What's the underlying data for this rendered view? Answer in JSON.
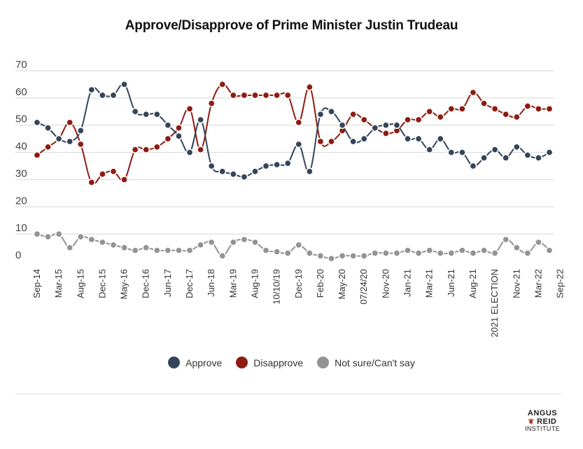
{
  "chart_data": {
    "type": "line",
    "title": "Approve/Disapprove of Prime Minister Justin Trudeau",
    "xlabel": "",
    "ylabel": "",
    "ylim": [
      0,
      70
    ],
    "yticks": [
      0,
      10,
      20,
      30,
      40,
      50,
      60,
      70
    ],
    "grid": true,
    "legend_position": "bottom",
    "x_tick_labels": [
      {
        "index": 0,
        "label": "Sep-14"
      },
      {
        "index": 2,
        "label": "Mar-15"
      },
      {
        "index": 4,
        "label": "Aug-15"
      },
      {
        "index": 6,
        "label": "Dec-15"
      },
      {
        "index": 8,
        "label": "May-16"
      },
      {
        "index": 10,
        "label": "Dec-16"
      },
      {
        "index": 12,
        "label": "Jun-17"
      },
      {
        "index": 14,
        "label": "Dec-17"
      },
      {
        "index": 16,
        "label": "Jun-18"
      },
      {
        "index": 18,
        "label": "Mar-19"
      },
      {
        "index": 20,
        "label": "Aug-19"
      },
      {
        "index": 22,
        "label": "10/10/19"
      },
      {
        "index": 24,
        "label": "Dec-19"
      },
      {
        "index": 26,
        "label": "Feb-20"
      },
      {
        "index": 28,
        "label": "May-20"
      },
      {
        "index": 30,
        "label": "07/24/20"
      },
      {
        "index": 32,
        "label": "Nov-20"
      },
      {
        "index": 34,
        "label": "Jan-21"
      },
      {
        "index": 36,
        "label": "Mar-21"
      },
      {
        "index": 38,
        "label": "Jun-21"
      },
      {
        "index": 40,
        "label": "Aug-21"
      },
      {
        "index": 42,
        "label": "2021 ELECTION"
      },
      {
        "index": 44,
        "label": "Nov-21"
      },
      {
        "index": 46,
        "label": "Mar-22"
      },
      {
        "index": 48,
        "label": "Sep-22"
      }
    ],
    "series": [
      {
        "name": "Approve",
        "color": "#34455b",
        "values": [
          51,
          49,
          45,
          44,
          48,
          63,
          61,
          61,
          65,
          55,
          54,
          54,
          50,
          46,
          40,
          52,
          35,
          33,
          32,
          31,
          33,
          35,
          35.5,
          36,
          43,
          33,
          54,
          55,
          50,
          44,
          45,
          49,
          50,
          50,
          45,
          45,
          41,
          45,
          40,
          40,
          35,
          38,
          41,
          38,
          42,
          39,
          38,
          40
        ]
      },
      {
        "name": "Disapprove",
        "color": "#8e1c12",
        "values": [
          39,
          42,
          45,
          51,
          43,
          29,
          32,
          33,
          30,
          41,
          41,
          42,
          45,
          49,
          56,
          41,
          58,
          65,
          61,
          61,
          61,
          61,
          61,
          61,
          51,
          64,
          44,
          44,
          48,
          54,
          52,
          49,
          47,
          48,
          52,
          52,
          55,
          53,
          56,
          56,
          62,
          58,
          56,
          54,
          53,
          57,
          56,
          56
        ]
      },
      {
        "name": "Not sure/Can't say",
        "color": "#939393",
        "values": [
          10,
          9,
          10,
          5,
          9,
          8,
          7,
          6,
          5,
          4,
          5,
          4,
          4,
          4,
          4,
          6,
          7,
          2,
          7,
          8,
          7,
          4,
          3.5,
          3,
          6,
          3,
          2,
          1,
          2,
          2,
          2,
          3,
          3,
          3,
          4,
          3,
          4,
          3,
          3,
          4,
          3,
          4,
          3,
          8,
          5,
          3,
          7,
          4
        ]
      }
    ]
  },
  "legend": {
    "items": [
      {
        "label": "Approve",
        "color": "#34455b"
      },
      {
        "label": "Disapprove",
        "color": "#8e1c12"
      },
      {
        "label": "Not sure/Can't say",
        "color": "#939393"
      }
    ]
  },
  "brand": {
    "line1": "ANGUS",
    "line2": "REID",
    "line3": "INSTITUTE",
    "leaf_icon": "maple-leaf-icon"
  }
}
